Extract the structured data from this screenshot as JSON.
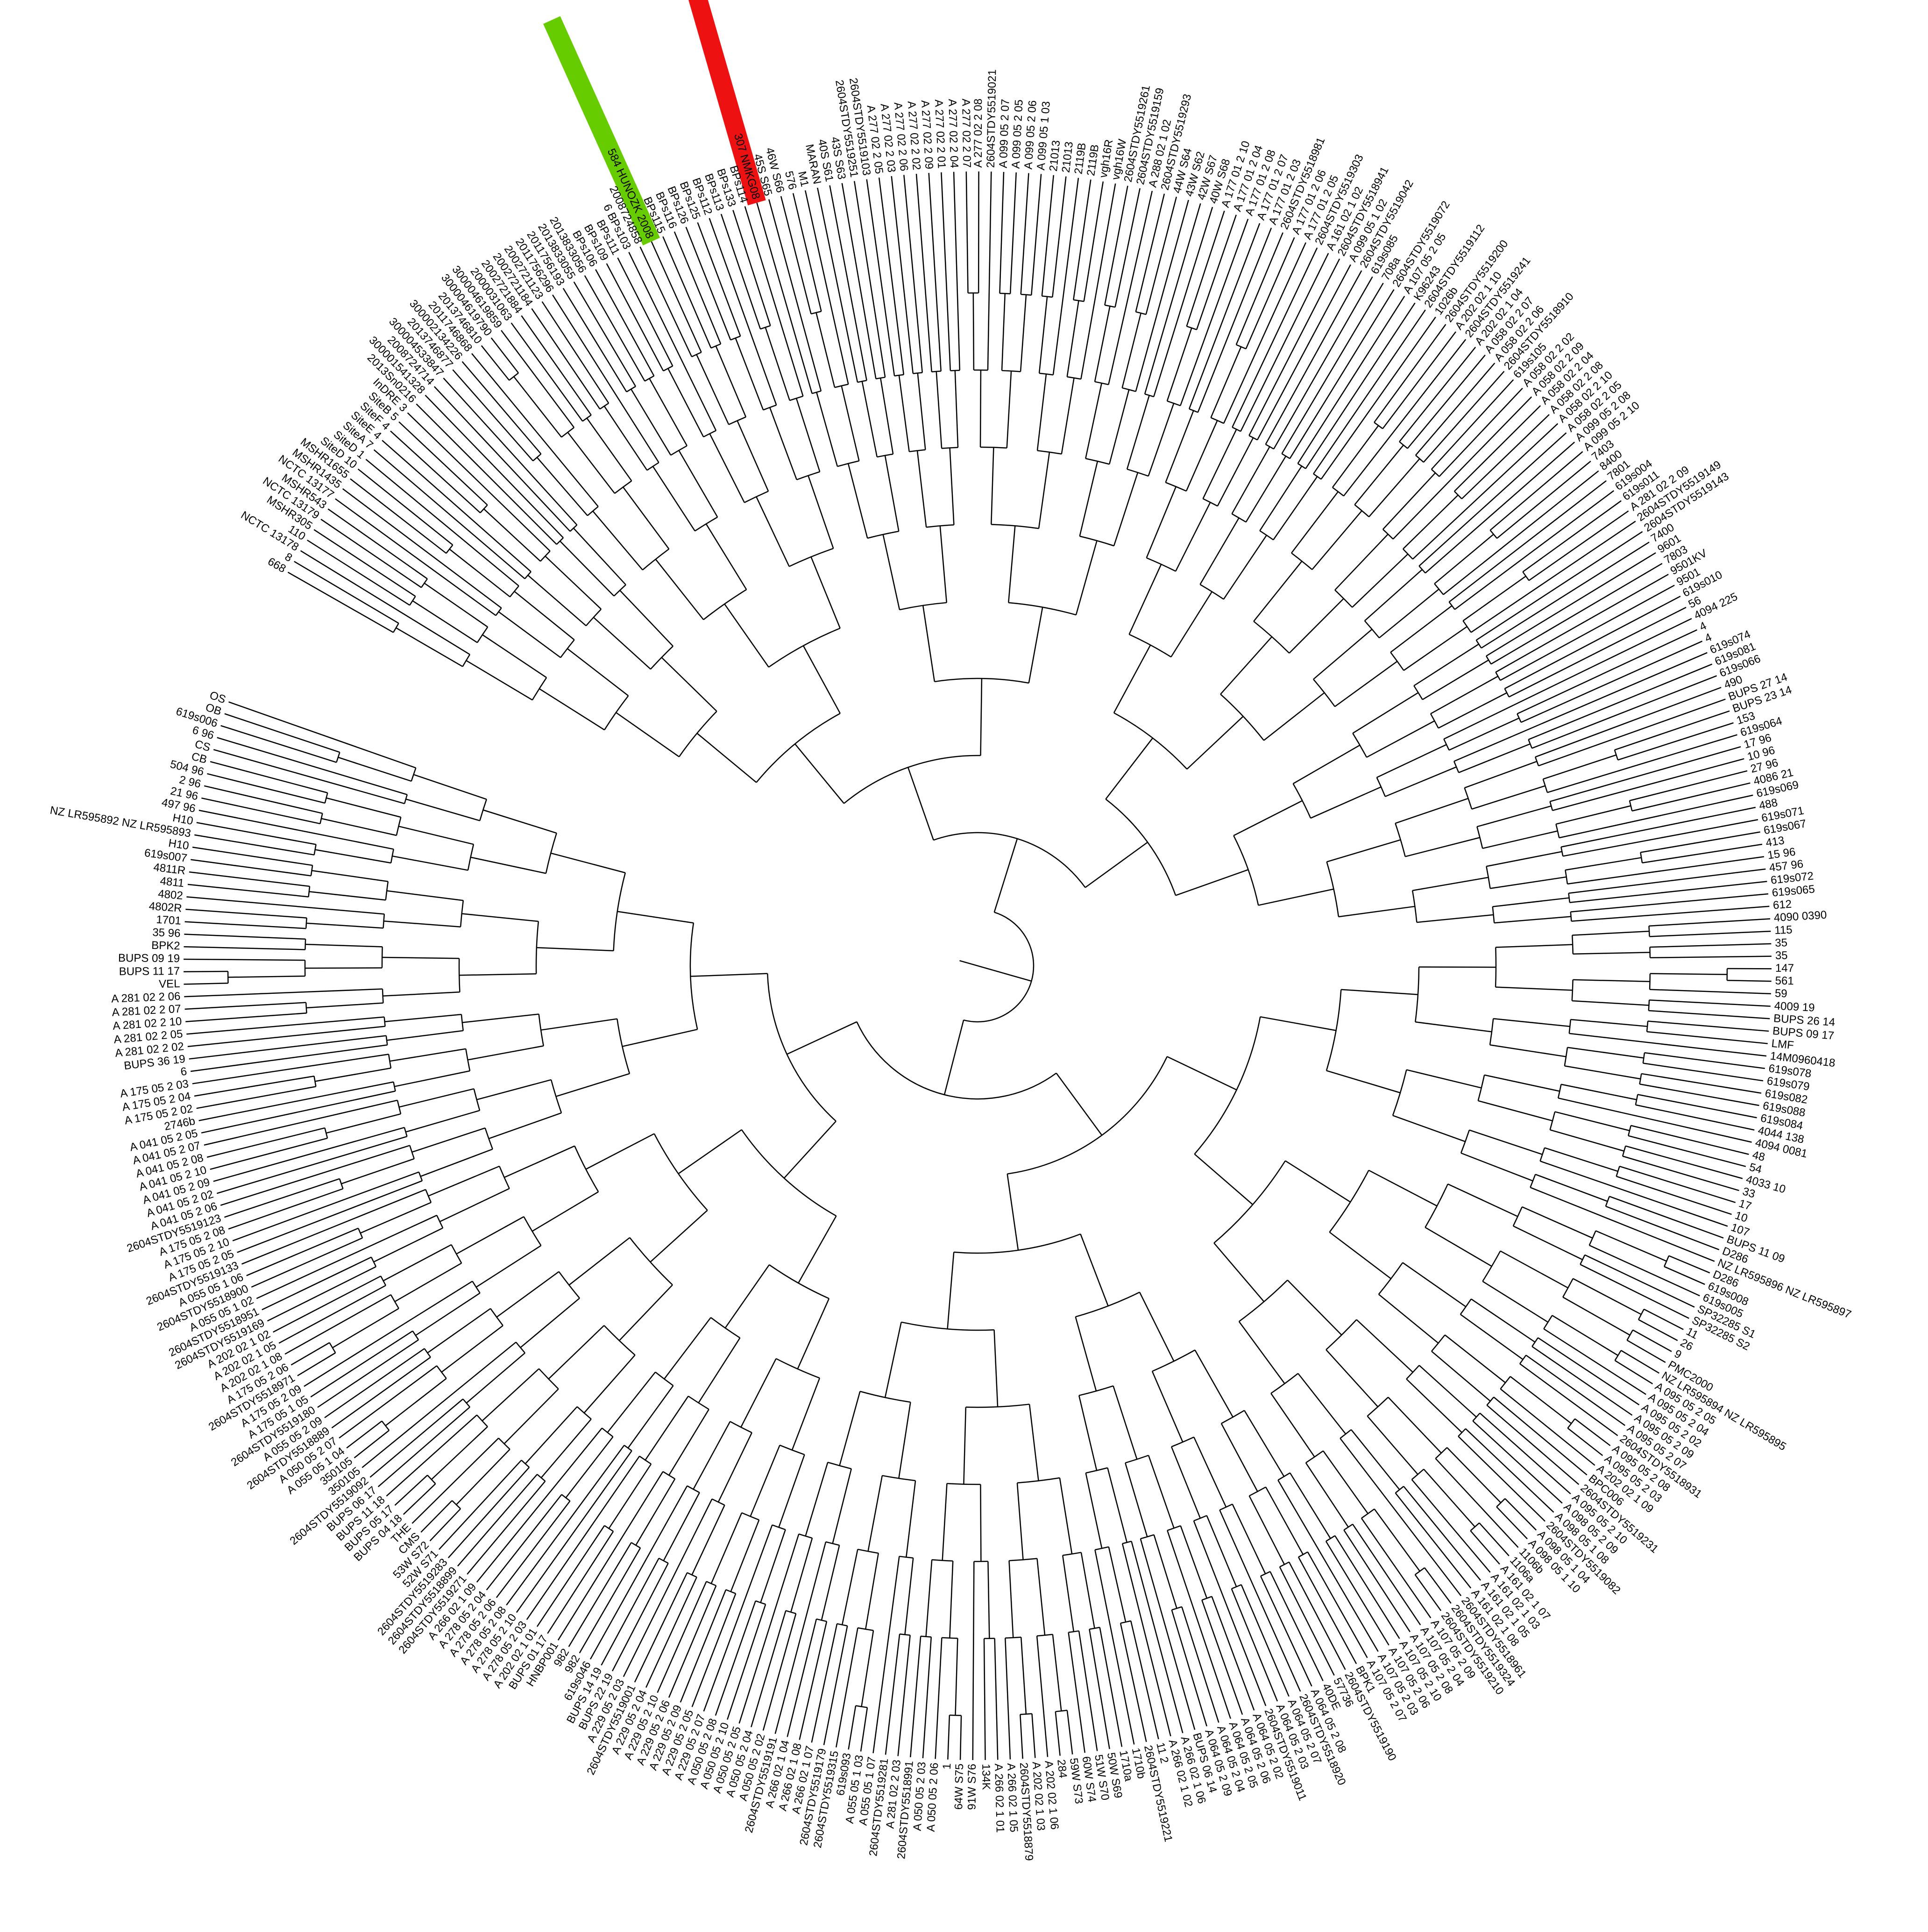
{
  "leaves": [
    {
      "label": "668"
    },
    {
      "label": "8"
    },
    {
      "label": "NCTC 13178"
    },
    {
      "label": "110"
    },
    {
      "label": "MSHR305"
    },
    {
      "label": "NCTC 13179"
    },
    {
      "label": "MSHR543"
    },
    {
      "label": "NCTC 13177"
    },
    {
      "label": "MSHR1435"
    },
    {
      "label": "MSHR1655"
    },
    {
      "label": "SiteD 10"
    },
    {
      "label": "SiteD 1"
    },
    {
      "label": "SiteA 7"
    },
    {
      "label": "SiteE 4"
    },
    {
      "label": "SiteF 4"
    },
    {
      "label": "SiteB 5"
    },
    {
      "label": "InDRE 3"
    },
    {
      "label": "2013Sn0216"
    },
    {
      "label": "300001541328"
    },
    {
      "label": "2008724714"
    },
    {
      "label": "300004533847"
    },
    {
      "label": "2013746877"
    },
    {
      "label": "300002134226"
    },
    {
      "label": "2011746868"
    },
    {
      "label": "2013746810"
    },
    {
      "label": "300004619790"
    },
    {
      "label": "300004619859"
    },
    {
      "label": "2000031063"
    },
    {
      "label": "2002721884"
    },
    {
      "label": "2002721184"
    },
    {
      "label": "2002721123"
    },
    {
      "label": "2011756296"
    },
    {
      "label": "2011756193"
    },
    {
      "label": "2013833055"
    },
    {
      "label": "2013833056"
    },
    {
      "label": "BPs106"
    },
    {
      "label": "BPs109"
    },
    {
      "label": "BPs111"
    },
    {
      "label": "6 BPs103"
    },
    {
      "label": "2008724858"
    },
    {
      "label": "584 HUNOZK 2008",
      "color": "#66cc00"
    },
    {
      "label": "BPs115"
    },
    {
      "label": "BPs116"
    },
    {
      "label": "BPs126"
    },
    {
      "label": "BPs125"
    },
    {
      "label": "BPs112"
    },
    {
      "label": "BPs113"
    },
    {
      "label": "BPs133"
    },
    {
      "label": "BPs114"
    },
    {
      "label": "307 NMKG08",
      "color": "#ee1111"
    },
    {
      "label": "45S S65"
    },
    {
      "label": "46W S66"
    },
    {
      "label": "576"
    },
    {
      "label": "M1"
    },
    {
      "label": "MARAN"
    },
    {
      "label": "40S S61"
    },
    {
      "label": "43S S63"
    },
    {
      "label": "2604STDY5519251"
    },
    {
      "label": "2604STDY5519103"
    },
    {
      "label": "A 277 02 2 05"
    },
    {
      "label": "A 277 02 2 03"
    },
    {
      "label": "A 277 02 2 06"
    },
    {
      "label": "A 277 02 2 02"
    },
    {
      "label": "A 277 02 2 09"
    },
    {
      "label": "A 277 02 2 01"
    },
    {
      "label": "A 277 02 2 04"
    },
    {
      "label": "A 277 02 2 07"
    },
    {
      "label": "A 277 02 2 08"
    },
    {
      "label": "2604STDY5519021"
    },
    {
      "label": "A 099 05 2 07"
    },
    {
      "label": "A 099 05 2 05"
    },
    {
      "label": "A 099 05 2 06"
    },
    {
      "label": "A 099 05 1 03"
    },
    {
      "label": "21013"
    },
    {
      "label": "21013"
    },
    {
      "label": "2119B"
    },
    {
      "label": "2119B"
    },
    {
      "label": "vgh16R"
    },
    {
      "label": "vgh16W"
    },
    {
      "label": "2604STDY5519261"
    },
    {
      "label": "2604STDY5519159"
    },
    {
      "label": "A 288 02 1 02"
    },
    {
      "label": "2604STDY5519293"
    },
    {
      "label": "44W S64"
    },
    {
      "label": "43W S62"
    },
    {
      "label": "42W S67"
    },
    {
      "label": "40W S68"
    },
    {
      "label": "A 177 01 2 10"
    },
    {
      "label": "A 177 01 2 04"
    },
    {
      "label": "A 177 01 2 08"
    },
    {
      "label": "A 177 01 2 07"
    },
    {
      "label": "A 177 01 2 03"
    },
    {
      "label": "2604STDY5518981"
    },
    {
      "label": "A 177 01 2 06"
    },
    {
      "label": "A 177 01 2 05"
    },
    {
      "label": "2604STDY5519303"
    },
    {
      "label": "A 161 02 1 02"
    },
    {
      "label": "2604STDY5518941"
    },
    {
      "label": "A 099 05 1 02"
    },
    {
      "label": "2604STDY5519042"
    },
    {
      "label": "619s085"
    },
    {
      "label": "708a"
    },
    {
      "label": "2604STDY5519072"
    },
    {
      "label": "A 107 05 2 05"
    },
    {
      "label": "K96243"
    },
    {
      "label": "2604STDY5519112"
    },
    {
      "label": "1026b"
    },
    {
      "label": "2604STDY5519200"
    },
    {
      "label": "A 202 02 1 10"
    },
    {
      "label": "2604STDY5519241"
    },
    {
      "label": "A 202 02 1 04"
    },
    {
      "label": "A 058 02 2 07"
    },
    {
      "label": "A 058 02 2 06"
    },
    {
      "label": "2604STDY5518910"
    },
    {
      "label": "619s105"
    },
    {
      "label": "A 058 02 2 02"
    },
    {
      "label": "A 058 02 2 09"
    },
    {
      "label": "A 058 02 2 04"
    },
    {
      "label": "A 058 02 2 08"
    },
    {
      "label": "A 058 02 2 10"
    },
    {
      "label": "A 058 02 2 05"
    },
    {
      "label": "A 099 05 2 08"
    },
    {
      "label": "A 099 05 2 10"
    },
    {
      "label": "7403"
    },
    {
      "label": "8400"
    },
    {
      "label": "7801"
    },
    {
      "label": "619s004"
    },
    {
      "label": "619s011"
    },
    {
      "label": "A 281 02 2 09"
    },
    {
      "label": "2604STDY5519149"
    },
    {
      "label": "2604STDY5519143"
    },
    {
      "label": "7400"
    },
    {
      "label": "9601"
    },
    {
      "label": "7803"
    },
    {
      "label": "9501KV"
    },
    {
      "label": "9501"
    },
    {
      "label": "619s010"
    },
    {
      "label": "56"
    },
    {
      "label": "4094 225"
    },
    {
      "label": "4"
    },
    {
      "label": "4"
    },
    {
      "label": "619s074"
    },
    {
      "label": "619s081"
    },
    {
      "label": "619s066"
    },
    {
      "label": "490"
    },
    {
      "label": "BUPS 27 14"
    },
    {
      "label": "BUPS 23 14"
    },
    {
      "label": "153"
    },
    {
      "label": "619s064"
    },
    {
      "label": "17 96"
    },
    {
      "label": "10 96"
    },
    {
      "label": "27 96"
    },
    {
      "label": "4086 21"
    },
    {
      "label": "619s069"
    },
    {
      "label": "488"
    },
    {
      "label": "619s071"
    },
    {
      "label": "619s067"
    },
    {
      "label": "413"
    },
    {
      "label": "15 96"
    },
    {
      "label": "457 96"
    },
    {
      "label": "619s072"
    },
    {
      "label": "619s065"
    },
    {
      "label": "612"
    },
    {
      "label": "4090 0390"
    },
    {
      "label": "115"
    },
    {
      "label": "35"
    },
    {
      "label": "35"
    },
    {
      "label": "147"
    },
    {
      "label": "561"
    },
    {
      "label": "59"
    },
    {
      "label": "4009 19"
    },
    {
      "label": "BUPS 26 14"
    },
    {
      "label": "BUPS 09 17"
    },
    {
      "label": "LMF"
    },
    {
      "label": "14M0960418"
    },
    {
      "label": "619s078"
    },
    {
      "label": "619s079"
    },
    {
      "label": "619s082"
    },
    {
      "label": "619s088"
    },
    {
      "label": "619s084"
    },
    {
      "label": "4044 138"
    },
    {
      "label": "4094 0081"
    },
    {
      "label": "48"
    },
    {
      "label": "54"
    },
    {
      "label": "4033 10"
    },
    {
      "label": "33"
    },
    {
      "label": "17"
    },
    {
      "label": "10"
    },
    {
      "label": "107"
    },
    {
      "label": "BUPS 11 09"
    },
    {
      "label": "D286"
    },
    {
      "label": "NZ LR595896 NZ LR595897"
    },
    {
      "label": "D286"
    },
    {
      "label": "619s008"
    },
    {
      "label": "619s005"
    },
    {
      "label": "SP32285 S1"
    },
    {
      "label": "SP32285 S2"
    },
    {
      "label": "11"
    },
    {
      "label": "26"
    },
    {
      "label": "9"
    },
    {
      "label": "PMC2000"
    },
    {
      "label": "NZ LR595894 NZ LR595895"
    },
    {
      "label": "A 095 05 2 05"
    },
    {
      "label": "A 095 05 2 04"
    },
    {
      "label": "A 095 05 2 02"
    },
    {
      "label": "A 095 05 2 09"
    },
    {
      "label": "A 095 05 2 07"
    },
    {
      "label": "2604STDY5518931"
    },
    {
      "label": "A 095 05 2 08"
    },
    {
      "label": "A 095 05 2 03"
    },
    {
      "label": "A 202 02 1 09"
    },
    {
      "label": "BPC006"
    },
    {
      "label": "2604STDY5519231"
    },
    {
      "label": "A 095 05 2 10"
    },
    {
      "label": "A 098 05 2 09"
    },
    {
      "label": "A 098 05 1 08"
    },
    {
      "label": "2604STDY5519082"
    },
    {
      "label": "A 098 05 1 04"
    },
    {
      "label": "A 098 05 1 10"
    },
    {
      "label": "1106b"
    },
    {
      "label": "1106a"
    },
    {
      "label": "A 161 02 1 07"
    },
    {
      "label": "A 161 02 1 03"
    },
    {
      "label": "A 161 02 1 05"
    },
    {
      "label": "A 161 02 1 08"
    },
    {
      "label": "2604STDY5518961"
    },
    {
      "label": "2604STDY5519324"
    },
    {
      "label": "2604STDY5519210"
    },
    {
      "label": "A 107 05 2 09"
    },
    {
      "label": "A 107 05 2 04"
    },
    {
      "label": "A 107 05 2 08"
    },
    {
      "label": "A 107 05 2 10"
    },
    {
      "label": "A 107 05 2 06"
    },
    {
      "label": "A 107 05 2 03"
    },
    {
      "label": "A 107 05 2 07"
    },
    {
      "label": "BPK1"
    },
    {
      "label": "2604STDY5519190"
    },
    {
      "label": "57736"
    },
    {
      "label": "40DE"
    },
    {
      "label": "A 064 05 2 08"
    },
    {
      "label": "2604STDY5518920"
    },
    {
      "label": "A 064 05 2 07"
    },
    {
      "label": "A 064 05 2 03"
    },
    {
      "label": "2604STDY5519011"
    },
    {
      "label": "A 064 05 2 02"
    },
    {
      "label": "A 064 05 2 06"
    },
    {
      "label": "A 064 05 2 05"
    },
    {
      "label": "A 064 05 2 04"
    },
    {
      "label": "A 064 05 2 09"
    },
    {
      "label": "BUPS 06 14"
    },
    {
      "label": "A 266 02 1 06"
    },
    {
      "label": "A 266 02 1 02"
    },
    {
      "label": "11 2"
    },
    {
      "label": "2604STDY5519221"
    },
    {
      "label": "1710b"
    },
    {
      "label": "1710a"
    },
    {
      "label": "50W S69"
    },
    {
      "label": "51W S70"
    },
    {
      "label": "60W S74"
    },
    {
      "label": "59W S73"
    },
    {
      "label": "284"
    },
    {
      "label": "A 202 02 1 06"
    },
    {
      "label": "A 202 02 1 03"
    },
    {
      "label": "2604STDY5518879"
    },
    {
      "label": "A 266 02 1 05"
    },
    {
      "label": "A 266 02 1 01"
    },
    {
      "label": "134K"
    },
    {
      "label": "91W S76"
    },
    {
      "label": "64W S75"
    },
    {
      "label": "1"
    },
    {
      "label": "A 050 05 2 06"
    },
    {
      "label": "A 050 05 2 03"
    },
    {
      "label": "2604STDY5518991"
    },
    {
      "label": "A 281 02 2 03"
    },
    {
      "label": "2604STDY5519281"
    },
    {
      "label": "A 055 05 1 07"
    },
    {
      "label": "A 055 05 1 03"
    },
    {
      "label": "619s093"
    },
    {
      "label": "2604STDY5519315"
    },
    {
      "label": "2604STDY5519179"
    },
    {
      "label": "A 266 02 1 07"
    },
    {
      "label": "A 266 02 1 08"
    },
    {
      "label": "A 266 02 1 04"
    },
    {
      "label": "2604STDY5519191"
    },
    {
      "label": "A 050 05 2 02"
    },
    {
      "label": "A 050 05 2 04"
    },
    {
      "label": "A 050 05 2 05"
    },
    {
      "label": "A 050 05 2 10"
    },
    {
      "label": "A 050 05 2 08"
    },
    {
      "label": "A 229 05 2 07"
    },
    {
      "label": "A 229 05 2 05"
    },
    {
      "label": "A 229 05 2 09"
    },
    {
      "label": "A 229 05 2 06"
    },
    {
      "label": "A 229 05 2 10"
    },
    {
      "label": "A 229 05 2 04"
    },
    {
      "label": "2604STDY5519001"
    },
    {
      "label": "A 229 05 2 03"
    },
    {
      "label": "BUPS 22 19"
    },
    {
      "label": "BUPS 14 19"
    },
    {
      "label": "619s046"
    },
    {
      "label": "982"
    },
    {
      "label": "982"
    },
    {
      "label": "HNBP001"
    },
    {
      "label": "BUPS 01 17"
    },
    {
      "label": "A 202 02 1 01"
    },
    {
      "label": "A 278 05 2 03"
    },
    {
      "label": "A 278 05 2 10"
    },
    {
      "label": "A 278 05 2 08"
    },
    {
      "label": "A 278 05 2 06"
    },
    {
      "label": "A 278 05 2 04"
    },
    {
      "label": "A 266 02 1 09"
    },
    {
      "label": "2604STDY5519271"
    },
    {
      "label": "2604STDY5518899"
    },
    {
      "label": "2604STDY5519283"
    },
    {
      "label": "52W S71"
    },
    {
      "label": "53W S72"
    },
    {
      "label": "CMS"
    },
    {
      "label": "THE"
    },
    {
      "label": "BUPS 04 18"
    },
    {
      "label": "BUPS 05 17"
    },
    {
      "label": "BUPS 11 18"
    },
    {
      "label": "BUPS 06 17"
    },
    {
      "label": "2604STDY5519092"
    },
    {
      "label": "350105"
    },
    {
      "label": "350105"
    },
    {
      "label": "A 055 05 1 04"
    },
    {
      "label": "A 050 05 2 07"
    },
    {
      "label": "2604STDY5518889"
    },
    {
      "label": "A 055 05 2 09"
    },
    {
      "label": "2604STDY5519180"
    },
    {
      "label": "A 175 05 1 05"
    },
    {
      "label": "A 175 05 2 09"
    },
    {
      "label": "2604STDY5518971"
    },
    {
      "label": "A 175 05 2 06"
    },
    {
      "label": "A 202 02 1 08"
    },
    {
      "label": "A 202 02 1 05"
    },
    {
      "label": "A 202 02 1 02"
    },
    {
      "label": "2604STDY5519169"
    },
    {
      "label": "2604STDY5518951"
    },
    {
      "label": "A 055 05 1 02"
    },
    {
      "label": "2604STDY5518900"
    },
    {
      "label": "A 055 05 1 06"
    },
    {
      "label": "2604STDY5519133"
    },
    {
      "label": "A 175 05 2 05"
    },
    {
      "label": "A 175 05 2 10"
    },
    {
      "label": "A 175 05 2 08"
    },
    {
      "label": "2604STDY5519123"
    },
    {
      "label": "A 041 05 2 06"
    },
    {
      "label": "A 041 05 2 02"
    },
    {
      "label": "A 041 05 2 09"
    },
    {
      "label": "A 041 05 2 10"
    },
    {
      "label": "A 041 05 2 08"
    },
    {
      "label": "A 041 05 2 07"
    },
    {
      "label": "A 041 05 2 05"
    },
    {
      "label": "2746b"
    },
    {
      "label": "A 175 05 2 02"
    },
    {
      "label": "A 175 05 2 04"
    },
    {
      "label": "A 175 05 2 03"
    },
    {
      "label": "6"
    },
    {
      "label": "BUPS 36 19"
    },
    {
      "label": "A 281 02 2 02"
    },
    {
      "label": "A 281 02 2 05"
    },
    {
      "label": "A 281 02 2 10"
    },
    {
      "label": "A 281 02 2 07"
    },
    {
      "label": "A 281 02 2 06"
    },
    {
      "label": "VEL"
    },
    {
      "label": "BUPS 11 17"
    },
    {
      "label": "BUPS 09 19"
    },
    {
      "label": "BPK2"
    },
    {
      "label": "35 96"
    },
    {
      "label": "1701"
    },
    {
      "label": "4802R"
    },
    {
      "label": "4802"
    },
    {
      "label": "4811"
    },
    {
      "label": "4811R"
    },
    {
      "label": "619s007"
    },
    {
      "label": "H10"
    },
    {
      "label": "NZ LR595892 NZ LR595893"
    },
    {
      "label": "H10"
    },
    {
      "label": "497 96"
    },
    {
      "label": "21 96"
    },
    {
      "label": "2 96"
    },
    {
      "label": "504 96"
    },
    {
      "label": "CB"
    },
    {
      "label": "CS"
    },
    {
      "label": "6 96"
    },
    {
      "label": "619s006"
    },
    {
      "label": "OB"
    },
    {
      "label": "OS"
    }
  ]
}
